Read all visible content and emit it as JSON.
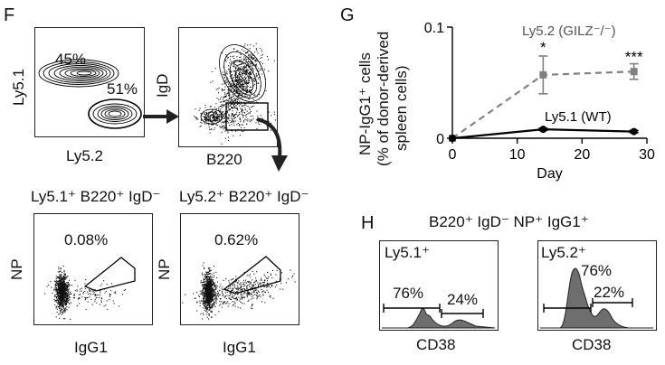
{
  "panel_f": {
    "letter": "F",
    "plot1": {
      "xlabel": "Ly5.2",
      "ylabel": "Ly5.1",
      "gate_a": "45%",
      "gate_b": "51%"
    },
    "plot2": {
      "xlabel": "B220",
      "ylabel": "IgD"
    },
    "plot3": {
      "title": "Ly5.1⁺ B220⁺ IgD⁻",
      "xlabel": "IgG1",
      "ylabel": "NP",
      "gate": "0.08%"
    },
    "plot4": {
      "title": "Ly5.2⁺ B220⁺ IgD⁻",
      "xlabel": "IgG1",
      "ylabel": "NP",
      "gate": "0.62%"
    }
  },
  "panel_g": {
    "letter": "G",
    "ylabel_1": "NP-IgG1⁺ cells",
    "ylabel_2": "(% of donor-derived",
    "ylabel_3": "spleen cells)",
    "xlabel": "Day",
    "x_ticks": [
      "0",
      "10",
      "20",
      "30"
    ],
    "y_ticks": [
      "0",
      "0.1"
    ],
    "annotations": [
      "*",
      "***"
    ]
  },
  "chart_data": {
    "type": "line",
    "xlabel": "Day",
    "ylabel": "NP-IgG1⁺ cells (% of donor-derived spleen cells)",
    "xlim": [
      0,
      30
    ],
    "ylim": [
      0,
      0.1
    ],
    "grid": false,
    "series": [
      {
        "name": "Ly5.2 (GILZ⁻/⁻)",
        "x": [
          0,
          14,
          28
        ],
        "y": [
          0,
          0.057,
          0.06
        ],
        "err": [
          0,
          0.017,
          0.007
        ],
        "color": "#808080",
        "dashed": true
      },
      {
        "name": "Ly5.1 (WT)",
        "x": [
          0,
          14,
          28
        ],
        "y": [
          0,
          0.008,
          0.006
        ],
        "err": [
          0,
          0.001,
          0.001
        ],
        "color": "#000000",
        "dashed": false
      }
    ]
  },
  "panel_h": {
    "letter": "H",
    "title": "B220⁺ IgD⁻ NP⁺ IgG1⁺",
    "hist1": {
      "label": "Ly5.1⁺",
      "pct_low": "76%",
      "pct_high": "24%",
      "xlabel": "CD38"
    },
    "hist2": {
      "label": "Ly5.2⁺",
      "pct_low": "76%",
      "pct_high": "22%",
      "xlabel": "CD38"
    }
  }
}
